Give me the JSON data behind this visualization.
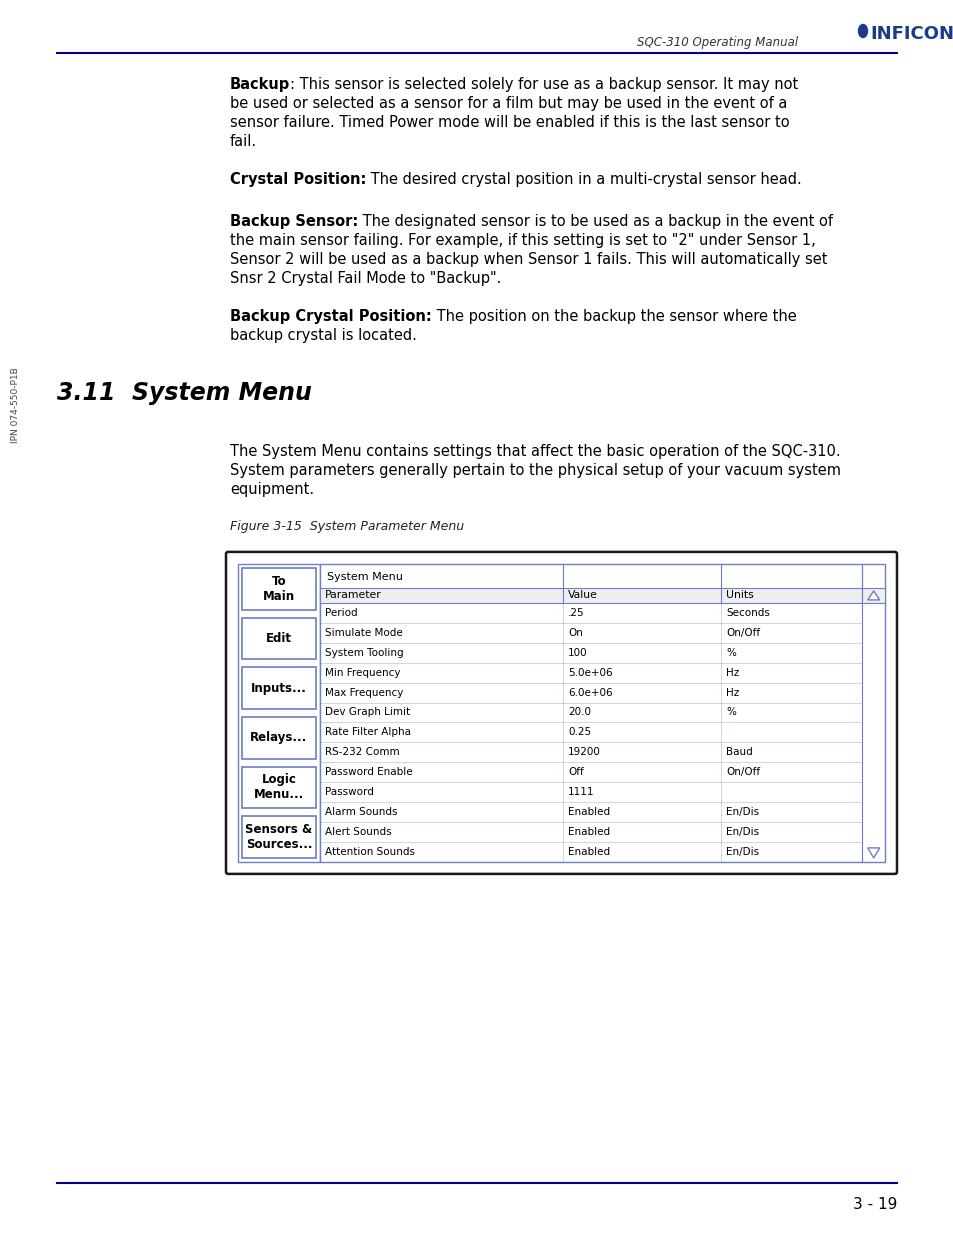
{
  "page_bg": "#ffffff",
  "header_text": "SQC-310 Operating Manual",
  "footer_line_color": "#00008B",
  "footer_page": "3 - 19",
  "side_label": "IPN 074-550-P1B",
  "top_line_color": "#00008B",
  "section_title": "3.11  System Menu",
  "figure_label": "Figure 3-15  System Parameter Menu",
  "nav_buttons": [
    "To\nMain",
    "Edit",
    "Inputs...",
    "Relays...",
    "Logic\nMenu...",
    "Sensors &\nSources..."
  ],
  "menu_title": "System Menu",
  "col_headers": [
    "Parameter",
    "Value",
    "Units"
  ],
  "table_rows": [
    [
      "Period",
      ".25",
      "Seconds"
    ],
    [
      "Simulate Mode",
      "On",
      "On/Off"
    ],
    [
      "System Tooling",
      "100",
      "%"
    ],
    [
      "Min Frequency",
      "5.0e+06",
      "Hz"
    ],
    [
      "Max Frequency",
      "6.0e+06",
      "Hz"
    ],
    [
      "Dev Graph Limit",
      "20.0",
      "%"
    ],
    [
      "Rate Filter Alpha",
      "0.25",
      ""
    ],
    [
      "RS-232 Comm",
      "19200",
      "Baud"
    ],
    [
      "Password Enable",
      "Off",
      "On/Off"
    ],
    [
      "Password",
      "1111",
      ""
    ],
    [
      "Alarm Sounds",
      "Enabled",
      "En/Dis"
    ],
    [
      "Alert Sounds",
      "Enabled",
      "En/Dis"
    ],
    [
      "Attention Sounds",
      "Enabled",
      "En/Dis"
    ]
  ],
  "nav_color": "#6b7fc4",
  "table_border_color": "#6b7fc4",
  "outer_border_color": "#2a2a2a"
}
